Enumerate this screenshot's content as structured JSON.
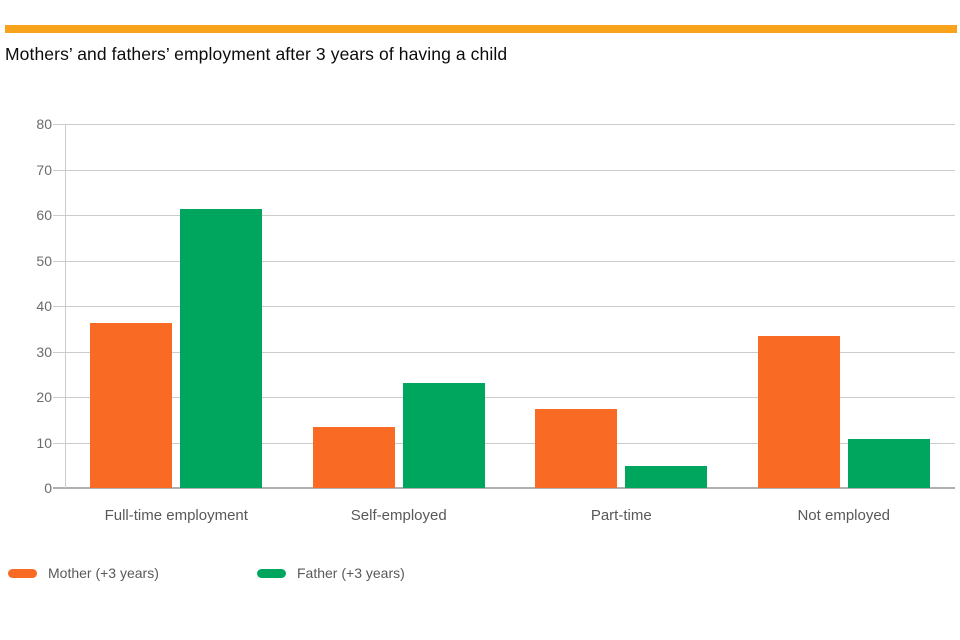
{
  "page": {
    "accent_bar_color": "#F9A21B"
  },
  "chart_data": {
    "type": "bar",
    "title": "Mothers’ and fathers’ employment after 3 years of having a child",
    "categories": [
      "Full-time employment",
      "Self-employed",
      "Part-time",
      "Not employed"
    ],
    "series": [
      {
        "name": "Mother (+3 years)",
        "color": "#F96A25",
        "values": [
          36.2,
          13.3,
          17.3,
          33.3
        ]
      },
      {
        "name": "Father (+3 years)",
        "color": "#00A65E",
        "values": [
          61.4,
          23.0,
          4.8,
          10.7
        ]
      }
    ],
    "xlabel": "",
    "ylabel": "",
    "ylim": [
      0,
      80
    ],
    "ytick_step": 10,
    "ytick_labels": [
      "0",
      "10",
      "20",
      "30",
      "40",
      "50",
      "60",
      "70",
      "80"
    ],
    "grid": true,
    "legend_position": "bottom",
    "grid_color": "#cccccc",
    "baseline_color": "#b0b0b0",
    "tick_label_color": "#6b6b6b",
    "category_label_color": "#595959",
    "title_color": "#0b0c0c"
  }
}
